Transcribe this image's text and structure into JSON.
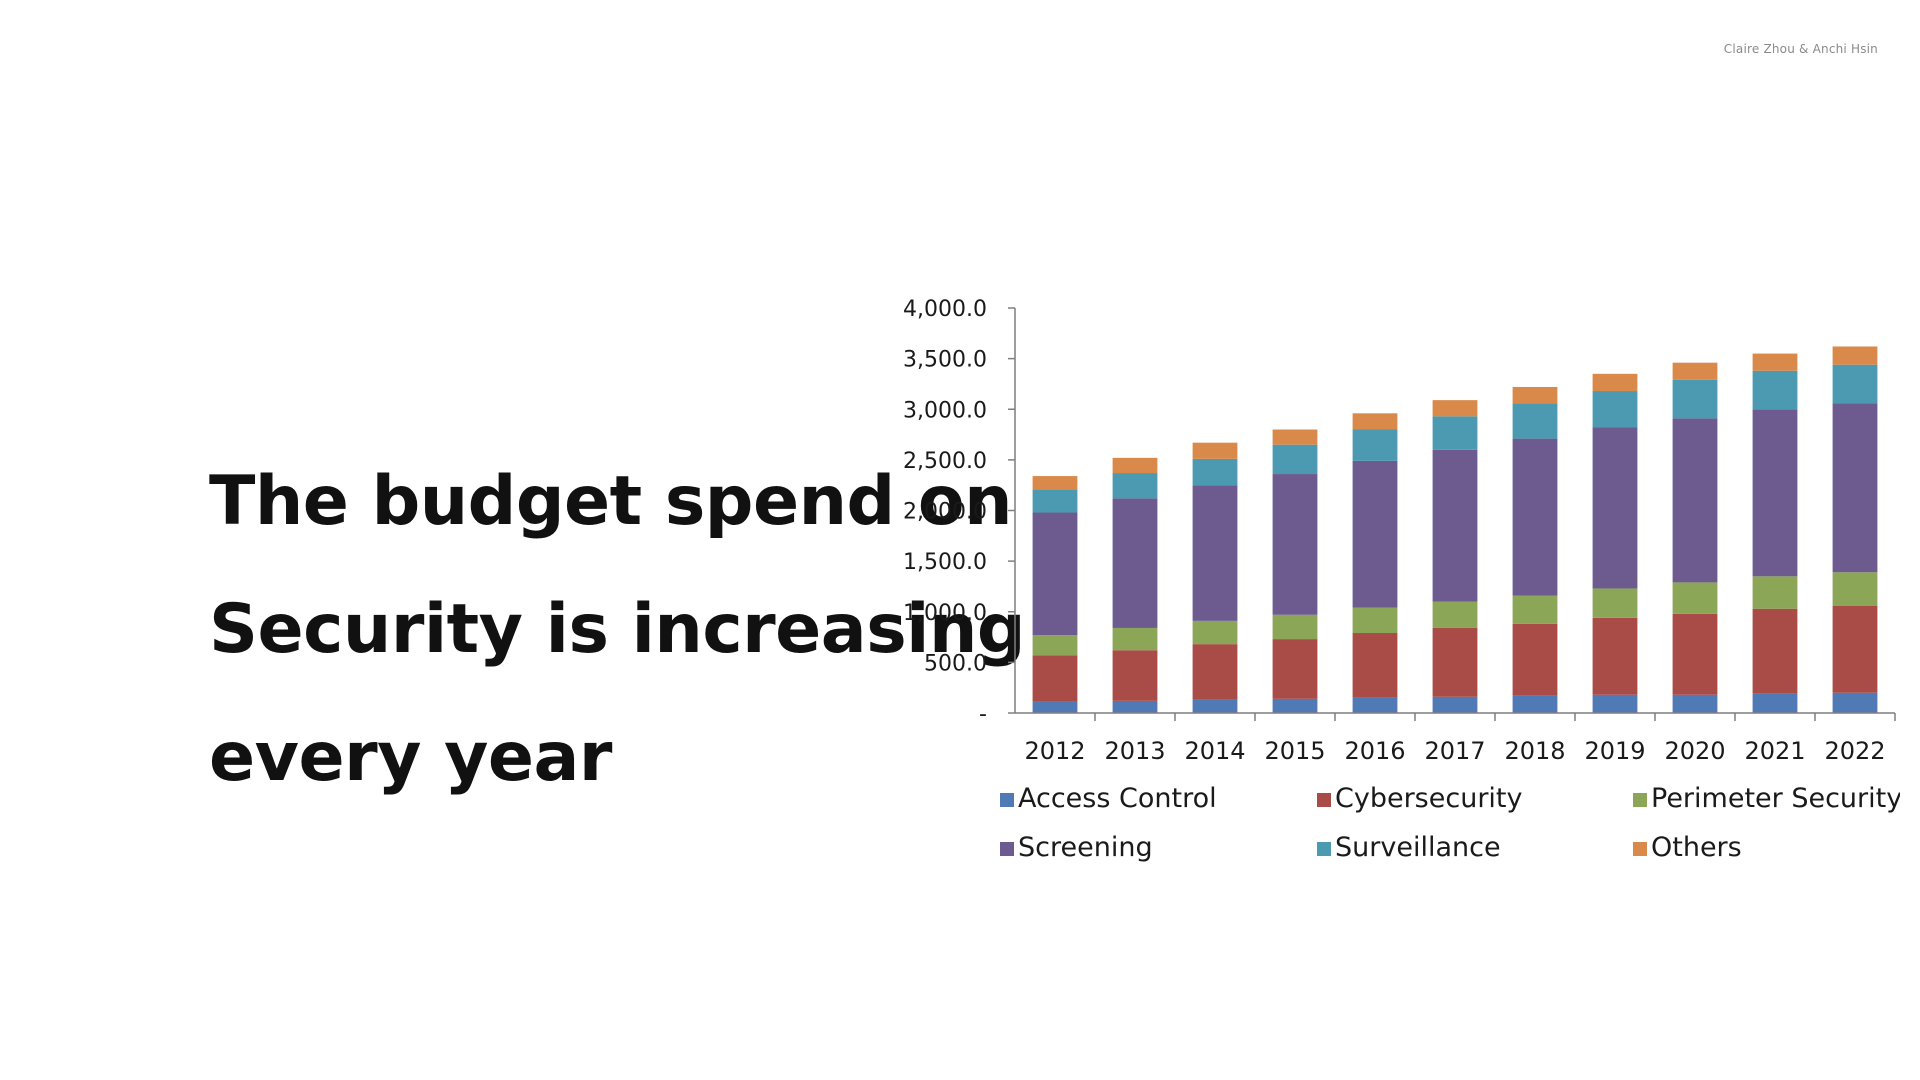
{
  "credit": "Claire Zhou & Anchi Hsin",
  "headline": {
    "line1": "The budget spend on",
    "line2": "Security is increasing",
    "line3": "every year"
  },
  "chart_data": {
    "type": "bar",
    "stacked": true,
    "title": "",
    "xlabel": "",
    "ylabel": "",
    "ylim": [
      0,
      4000
    ],
    "yticks": [
      {
        "value": 0,
        "label": "-"
      },
      {
        "value": 500,
        "label": "500.0"
      },
      {
        "value": 1000,
        "label": "1,000.0"
      },
      {
        "value": 1500,
        "label": "1,500.0"
      },
      {
        "value": 2000,
        "label": "2,000.0"
      },
      {
        "value": 2500,
        "label": "2,500.0"
      },
      {
        "value": 3000,
        "label": "3,000.0"
      },
      {
        "value": 3500,
        "label": "3,500.0"
      },
      {
        "value": 4000,
        "label": "4,000.0"
      }
    ],
    "grid": false,
    "legend_position": "bottom",
    "categories": [
      "2012",
      "2013",
      "2014",
      "2015",
      "2016",
      "2017",
      "2018",
      "2019",
      "2020",
      "2021",
      "2022"
    ],
    "series": [
      {
        "name": "Access Control",
        "color": "#4f7ab5",
        "values": [
          110,
          120,
          130,
          140,
          150,
          160,
          170,
          180,
          180,
          190,
          200
        ]
      },
      {
        "name": "Cybersecurity",
        "color": "#a94b46",
        "values": [
          460,
          500,
          550,
          590,
          640,
          680,
          710,
          760,
          800,
          840,
          860
        ]
      },
      {
        "name": "Perimeter Security",
        "color": "#8ba656",
        "values": [
          200,
          220,
          230,
          240,
          250,
          260,
          280,
          290,
          310,
          320,
          330
        ]
      },
      {
        "name": "Screening",
        "color": "#6d5a8e",
        "values": [
          1210,
          1280,
          1340,
          1390,
          1450,
          1500,
          1550,
          1590,
          1620,
          1650,
          1670
        ]
      },
      {
        "name": "Surveillance",
        "color": "#4b9ab1",
        "values": [
          230,
          250,
          260,
          290,
          310,
          330,
          350,
          360,
          380,
          380,
          380
        ]
      },
      {
        "name": "Others",
        "color": "#d9894a",
        "values": [
          130,
          150,
          160,
          150,
          160,
          160,
          160,
          170,
          170,
          170,
          180
        ]
      }
    ]
  }
}
